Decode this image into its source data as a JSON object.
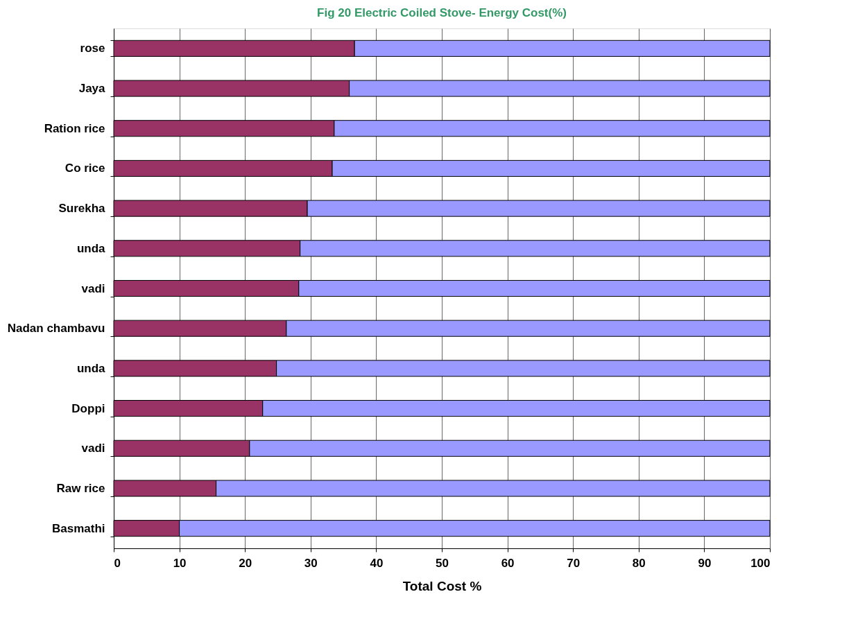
{
  "chart_data": {
    "type": "bar",
    "orientation": "horizontal",
    "stacked": true,
    "title": "Fig 20 Electric Coiled Stove- Energy Cost(%)",
    "xlabel": "Total Cost %",
    "categories": [
      "rose",
      "Jaya",
      "Ration rice",
      "Co rice",
      "Surekha",
      "unda",
      "vadi",
      "Nadan chambavu",
      "unda",
      "Doppi",
      "vadi",
      "Raw rice",
      "Basmathi"
    ],
    "series": [
      {
        "color": "#993366",
        "values": [
          36.7,
          35.9,
          33.6,
          33.3,
          29.5,
          28.4,
          28.2,
          26.3,
          24.8,
          22.7,
          20.7,
          15.6,
          10.0
        ]
      },
      {
        "color": "#9999ff",
        "values": [
          63.3,
          64.1,
          66.4,
          66.7,
          70.5,
          71.6,
          71.8,
          73.7,
          75.2,
          77.3,
          79.3,
          84.4,
          90.0
        ]
      }
    ],
    "xlim": [
      0,
      100
    ],
    "xticks": [
      0,
      10,
      20,
      30,
      40,
      50,
      60,
      70,
      80,
      90,
      100
    ],
    "grid": "x",
    "legend": false
  }
}
